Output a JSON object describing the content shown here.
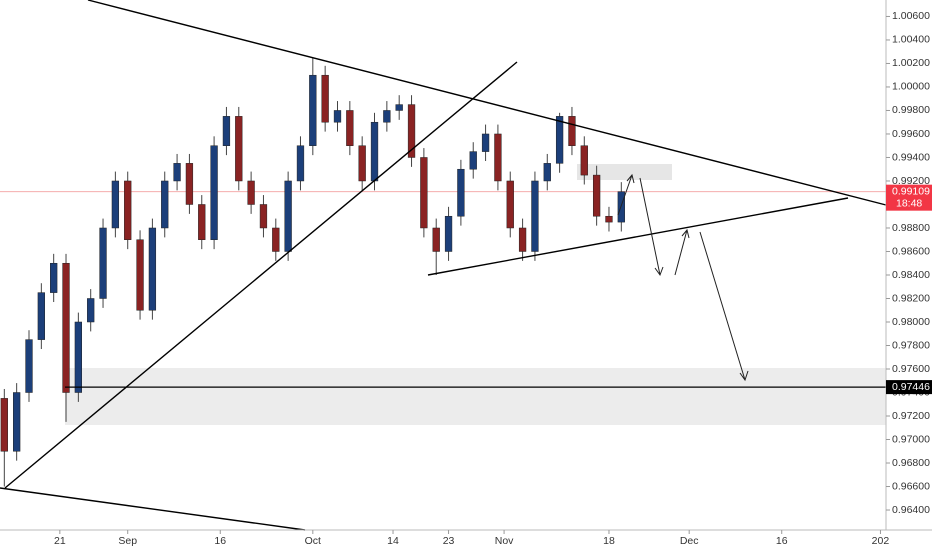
{
  "chart_data": {
    "type": "candlestick",
    "x": [
      12,
      14,
      16,
      18,
      20,
      22,
      24,
      26,
      28,
      30,
      32,
      34,
      36,
      38,
      40,
      42,
      44,
      46,
      48,
      50,
      52,
      54,
      56,
      58,
      60,
      62,
      64,
      66,
      68,
      70,
      72,
      74,
      76,
      78,
      80,
      82,
      84,
      86,
      88,
      90,
      92,
      94,
      96,
      98,
      100,
      102,
      104,
      106,
      108,
      110,
      112
    ],
    "open": [
      0.9735,
      0.969,
      0.974,
      0.9785,
      0.9825,
      0.985,
      0.974,
      0.98,
      0.982,
      0.988,
      0.992,
      0.987,
      0.981,
      0.988,
      0.992,
      0.9935,
      0.99,
      0.987,
      0.995,
      0.9975,
      0.992,
      0.99,
      0.988,
      0.986,
      0.992,
      0.995,
      1.001,
      0.997,
      0.998,
      0.995,
      0.992,
      0.997,
      0.998,
      0.9985,
      0.994,
      0.988,
      0.986,
      0.989,
      0.993,
      0.9945,
      0.996,
      0.992,
      0.988,
      0.986,
      0.992,
      0.9935,
      0.9975,
      0.995,
      0.9925,
      0.989,
      0.9885
    ],
    "high": [
      0.9743,
      0.9748,
      0.9793,
      0.9833,
      0.9858,
      0.9858,
      0.9808,
      0.9828,
      0.9888,
      0.9928,
      0.9928,
      0.9878,
      0.9888,
      0.9928,
      0.9943,
      0.9943,
      0.9908,
      0.9958,
      0.9983,
      0.9983,
      0.9928,
      0.9908,
      0.9888,
      0.9928,
      0.9958,
      1.0025,
      1.0018,
      0.9988,
      0.9988,
      0.9958,
      0.9978,
      0.9988,
      0.9993,
      0.9993,
      0.9948,
      0.9888,
      0.9898,
      0.9938,
      0.9953,
      0.9968,
      0.9968,
      0.9928,
      0.9888,
      0.9928,
      0.9943,
      0.9978,
      0.9983,
      0.9958,
      0.9933,
      0.9898,
      0.9919
    ],
    "low": [
      0.966,
      0.9682,
      0.9732,
      0.9777,
      0.9817,
      0.9715,
      0.9732,
      0.9792,
      0.9812,
      0.9872,
      0.9862,
      0.9802,
      0.9802,
      0.9872,
      0.9912,
      0.9892,
      0.9862,
      0.9862,
      0.9942,
      0.9912,
      0.9892,
      0.9872,
      0.9852,
      0.9852,
      0.9912,
      0.9942,
      0.9962,
      0.9962,
      0.9942,
      0.9912,
      0.9912,
      0.9962,
      0.9972,
      0.9932,
      0.9872,
      0.984,
      0.9852,
      0.9882,
      0.9922,
      0.9937,
      0.9912,
      0.9872,
      0.9852,
      0.9852,
      0.9912,
      0.9927,
      0.9942,
      0.9917,
      0.9882,
      0.9877,
      0.9877
    ],
    "close": [
      0.969,
      0.974,
      0.9785,
      0.9825,
      0.985,
      0.974,
      0.98,
      0.982,
      0.988,
      0.992,
      0.987,
      0.981,
      0.988,
      0.992,
      0.9935,
      0.99,
      0.987,
      0.995,
      0.9975,
      0.992,
      0.99,
      0.988,
      0.986,
      0.992,
      0.995,
      1.001,
      0.997,
      0.998,
      0.995,
      0.992,
      0.997,
      0.998,
      0.9985,
      0.994,
      0.988,
      0.986,
      0.989,
      0.993,
      0.9945,
      0.996,
      0.992,
      0.988,
      0.986,
      0.992,
      0.9935,
      0.9975,
      0.995,
      0.9925,
      0.989,
      0.9885,
      0.99109
    ],
    "up_color": "#1c3f7a",
    "down_color": "#8a2323",
    "xlim": [
      11.3,
      154.9
    ],
    "xticks": [
      {
        "value": 21,
        "label": "21"
      },
      {
        "value": 32,
        "label": "Sep"
      },
      {
        "value": 47,
        "label": "16"
      },
      {
        "value": 62,
        "label": "Oct"
      },
      {
        "value": 75,
        "label": "14"
      },
      {
        "value": 84,
        "label": "23"
      },
      {
        "value": 93,
        "label": "Nov"
      },
      {
        "value": 110,
        "label": "18"
      },
      {
        "value": 123,
        "label": "Dec"
      },
      {
        "value": 138,
        "label": "16"
      },
      {
        "value": 154,
        "label": "202"
      }
    ],
    "ylim": [
      0.9623,
      1.0074
    ],
    "yticks": [
      {
        "value": 0.964,
        "label": "0.96400"
      },
      {
        "value": 0.966,
        "label": "0.96600"
      },
      {
        "value": 0.968,
        "label": "0.96800"
      },
      {
        "value": 0.97,
        "label": "0.97000"
      },
      {
        "value": 0.972,
        "label": "0.97200"
      },
      {
        "value": 0.974,
        "label": "0.97400"
      },
      {
        "value": 0.976,
        "label": "0.97600"
      },
      {
        "value": 0.978,
        "label": "0.97800"
      },
      {
        "value": 0.98,
        "label": "0.98000"
      },
      {
        "value": 0.982,
        "label": "0.98200"
      },
      {
        "value": 0.984,
        "label": "0.98400"
      },
      {
        "value": 0.986,
        "label": "0.98600"
      },
      {
        "value": 0.988,
        "label": "0.98800"
      },
      {
        "value": 0.99,
        "label": "0.99000"
      },
      {
        "value": 0.992,
        "label": "0.99200"
      },
      {
        "value": 0.994,
        "label": "0.99400"
      },
      {
        "value": 0.996,
        "label": "0.99600"
      },
      {
        "value": 0.998,
        "label": "0.99800"
      },
      {
        "value": 1.0,
        "label": "1.00000"
      },
      {
        "value": 1.002,
        "label": "1.00200"
      },
      {
        "value": 1.004,
        "label": "1.00400"
      },
      {
        "value": 1.006,
        "label": "1.00600"
      }
    ],
    "grid": false,
    "horizontal_line": {
      "value": 0.97446,
      "label": "0.97446"
    },
    "last_price": {
      "value": 0.99109,
      "label": "0.99109",
      "countdown": "18:48"
    }
  }
}
